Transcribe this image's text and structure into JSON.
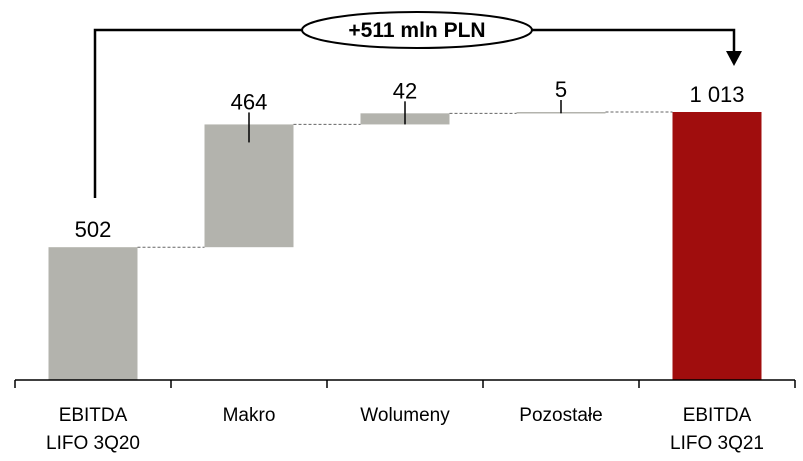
{
  "chart_data": {
    "type": "waterfall",
    "categories": [
      [
        "EBITDA",
        "LIFO 3Q20"
      ],
      [
        "Makro"
      ],
      [
        "Wolumeny"
      ],
      [
        "Pozostałe"
      ],
      [
        "EBITDA",
        "LIFO 3Q21"
      ]
    ],
    "values": [
      502,
      464,
      42,
      5,
      1013
    ],
    "kinds": [
      "total",
      "delta",
      "delta",
      "delta",
      "total"
    ],
    "value_labels": [
      "502",
      "464",
      "42",
      "5",
      "1 013"
    ],
    "ylim": [
      0,
      1013
    ],
    "annotation": "+511 mln PLN",
    "colors": {
      "start_bar": "#b3b3ad",
      "delta_bar": "#b3b3ad",
      "end_bar": "#a00d0d",
      "connector": "#666666",
      "axis": "#000000"
    }
  }
}
